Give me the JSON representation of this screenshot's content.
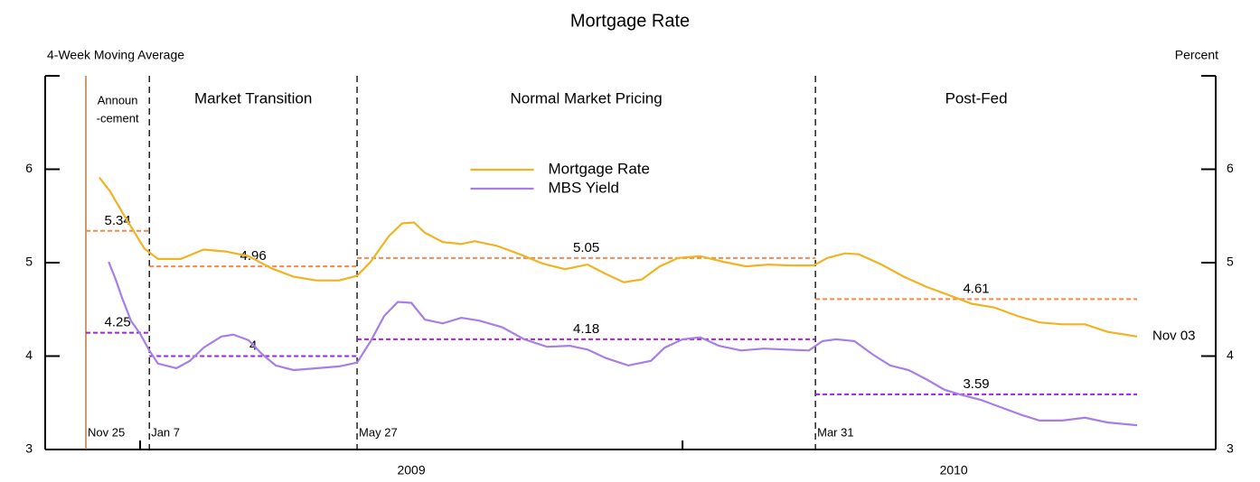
{
  "chart_data": {
    "type": "line",
    "title": "Mortgage Rate",
    "y_label": "4-Week Moving Average",
    "y2_label": "Percent",
    "xlim": [
      2008.825,
      2010.983
    ],
    "xticks": [
      {
        "value": 2009.5,
        "label": "2009"
      },
      {
        "value": 2010.5,
        "label": "2010"
      }
    ],
    "xticks_minor": [
      2009,
      2010
    ],
    "ylim": [
      3,
      7
    ],
    "yticks": [
      3,
      4,
      5,
      6
    ],
    "y2lim": [
      3,
      7
    ],
    "y2ticks": [
      3,
      4,
      5,
      6
    ],
    "legend": "top-center",
    "events": [
      {
        "x": 2008.9,
        "label": "Nov 25",
        "color": "#b5651d",
        "style": "solid"
      },
      {
        "x": 2009.017,
        "label": "Jan 7",
        "color": "#000000",
        "style": "dashed"
      },
      {
        "x": 2009.4,
        "label": "May 27",
        "color": "#000000",
        "style": "dashed"
      },
      {
        "x": 2010.245,
        "label": "Mar 31",
        "color": "#000000",
        "style": "dashed"
      }
    ],
    "periods": [
      [
        "Announ",
        "-cement"
      ],
      [
        "Market Transition"
      ],
      [
        "Normal Market Pricing"
      ],
      [
        "Post-Fed"
      ]
    ],
    "end_label": "Nov 03",
    "series": [
      {
        "name": "Mortgage Rate",
        "color": "#f0b323",
        "average_color": "#f4874b",
        "period_averages": [
          5.34,
          4.96,
          5.05,
          4.61
        ],
        "x": [
          2008.925,
          2008.945,
          2008.967,
          2008.988,
          2009.008,
          2009.033,
          2009.075,
          2009.117,
          2009.158,
          2009.2,
          2009.242,
          2009.283,
          2009.325,
          2009.367,
          2009.4,
          2009.425,
          2009.458,
          2009.483,
          2009.505,
          2009.525,
          2009.558,
          2009.592,
          2009.617,
          2009.658,
          2009.7,
          2009.742,
          2009.783,
          2009.825,
          2009.858,
          2009.892,
          2009.925,
          2009.958,
          2009.992,
          2010.033,
          2010.075,
          2010.117,
          2010.158,
          2010.2,
          2010.242,
          2010.267,
          2010.3,
          2010.325,
          2010.367,
          2010.408,
          2010.45,
          2010.492,
          2010.533,
          2010.575,
          2010.617,
          2010.658,
          2010.7,
          2010.742,
          2010.783,
          2010.838
        ],
        "values": [
          5.91,
          5.76,
          5.54,
          5.34,
          5.15,
          5.04,
          5.04,
          5.14,
          5.12,
          5.07,
          4.94,
          4.85,
          4.81,
          4.81,
          4.86,
          5.01,
          5.28,
          5.42,
          5.43,
          5.32,
          5.22,
          5.2,
          5.23,
          5.18,
          5.09,
          4.99,
          4.93,
          4.98,
          4.88,
          4.79,
          4.82,
          4.96,
          5.05,
          5.07,
          5.01,
          4.96,
          4.98,
          4.97,
          4.97,
          5.05,
          5.1,
          5.09,
          4.98,
          4.85,
          4.74,
          4.65,
          4.56,
          4.52,
          4.43,
          4.36,
          4.34,
          4.34,
          4.26,
          4.21
        ]
      },
      {
        "name": "MBS Yield",
        "color": "#a77ee8",
        "average_color": "#a020e8",
        "period_averages": [
          4.25,
          4,
          4.18,
          3.59
        ],
        "x": [
          2008.942,
          2008.955,
          2008.967,
          2008.983,
          2009.0,
          2009.017,
          2009.033,
          2009.067,
          2009.092,
          2009.117,
          2009.15,
          2009.172,
          2009.2,
          2009.225,
          2009.25,
          2009.283,
          2009.325,
          2009.367,
          2009.4,
          2009.425,
          2009.45,
          2009.475,
          2009.5,
          2009.525,
          2009.558,
          2009.592,
          2009.625,
          2009.667,
          2009.708,
          2009.75,
          2009.792,
          2009.825,
          2009.858,
          2009.9,
          2009.942,
          2009.967,
          2010.0,
          2010.033,
          2010.067,
          2010.108,
          2010.15,
          2010.192,
          2010.233,
          2010.258,
          2010.283,
          2010.317,
          2010.35,
          2010.383,
          2010.417,
          2010.45,
          2010.483,
          2010.517,
          2010.55,
          2010.583,
          2010.625,
          2010.658,
          2010.7,
          2010.742,
          2010.783,
          2010.838
        ],
        "values": [
          5.01,
          4.82,
          4.62,
          4.38,
          4.24,
          4.06,
          3.92,
          3.87,
          3.95,
          4.09,
          4.21,
          4.23,
          4.17,
          4.02,
          3.9,
          3.85,
          3.87,
          3.89,
          3.93,
          4.16,
          4.43,
          4.58,
          4.57,
          4.39,
          4.35,
          4.41,
          4.38,
          4.31,
          4.18,
          4.1,
          4.11,
          4.07,
          3.98,
          3.9,
          3.95,
          4.09,
          4.18,
          4.2,
          4.11,
          4.06,
          4.08,
          4.07,
          4.06,
          4.16,
          4.18,
          4.16,
          4.02,
          3.9,
          3.85,
          3.75,
          3.64,
          3.58,
          3.53,
          3.46,
          3.37,
          3.31,
          3.31,
          3.34,
          3.29,
          3.26
        ]
      }
    ]
  }
}
